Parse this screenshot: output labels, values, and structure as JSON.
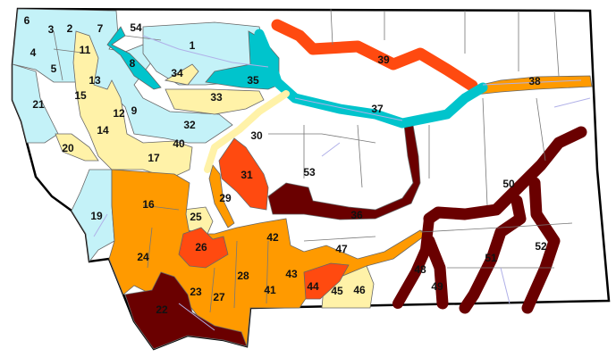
{
  "map": {
    "colors": {
      "light_blue": "#c4f2f8",
      "teal": "#00c4cc",
      "pale_yellow": "#fff2a8",
      "orange": "#ff9a00",
      "red_orange": "#ff4a10",
      "dark_red": "#6a0000",
      "white": "#ffffff"
    },
    "regions": [
      {
        "id": "1",
        "color": "light_blue"
      },
      {
        "id": "2",
        "color": "light_blue"
      },
      {
        "id": "3",
        "color": "light_blue"
      },
      {
        "id": "4",
        "color": "light_blue"
      },
      {
        "id": "5",
        "color": "light_blue"
      },
      {
        "id": "6",
        "color": "light_blue"
      },
      {
        "id": "7",
        "color": "light_blue"
      },
      {
        "id": "8",
        "color": "teal"
      },
      {
        "id": "9",
        "color": "light_blue"
      },
      {
        "id": "11",
        "color": "pale_yellow"
      },
      {
        "id": "12",
        "color": "pale_yellow"
      },
      {
        "id": "13",
        "color": "light_blue"
      },
      {
        "id": "14",
        "color": "pale_yellow"
      },
      {
        "id": "15",
        "color": "pale_yellow"
      },
      {
        "id": "16",
        "color": "orange"
      },
      {
        "id": "17",
        "color": "pale_yellow"
      },
      {
        "id": "19",
        "color": "light_blue"
      },
      {
        "id": "20",
        "color": "pale_yellow"
      },
      {
        "id": "21",
        "color": "light_blue"
      },
      {
        "id": "22",
        "color": "dark_red"
      },
      {
        "id": "23",
        "color": "orange"
      },
      {
        "id": "24",
        "color": "orange"
      },
      {
        "id": "25",
        "color": "pale_yellow"
      },
      {
        "id": "26",
        "color": "red_orange"
      },
      {
        "id": "27",
        "color": "orange"
      },
      {
        "id": "28",
        "color": "orange"
      },
      {
        "id": "29",
        "color": "orange"
      },
      {
        "id": "30",
        "color": "white"
      },
      {
        "id": "31",
        "color": "red_orange"
      },
      {
        "id": "32",
        "color": "light_blue"
      },
      {
        "id": "33",
        "color": "pale_yellow"
      },
      {
        "id": "34",
        "color": "pale_yellow"
      },
      {
        "id": "35",
        "color": "teal"
      },
      {
        "id": "36",
        "color": "dark_red"
      },
      {
        "id": "37",
        "color": "teal"
      },
      {
        "id": "38",
        "color": "orange"
      },
      {
        "id": "39",
        "color": "red_orange"
      },
      {
        "id": "40",
        "color": "light_blue"
      },
      {
        "id": "41",
        "color": "orange"
      },
      {
        "id": "42",
        "color": "orange"
      },
      {
        "id": "43",
        "color": "orange"
      },
      {
        "id": "44",
        "color": "red_orange"
      },
      {
        "id": "45",
        "color": "pale_yellow"
      },
      {
        "id": "46",
        "color": "pale_yellow"
      },
      {
        "id": "47",
        "color": "white"
      },
      {
        "id": "48",
        "color": "dark_red"
      },
      {
        "id": "49",
        "color": "dark_red"
      },
      {
        "id": "50",
        "color": "white"
      },
      {
        "id": "51",
        "color": "dark_red"
      },
      {
        "id": "52",
        "color": "dark_red"
      },
      {
        "id": "53",
        "color": "white"
      },
      {
        "id": "54",
        "color": "white"
      }
    ]
  }
}
